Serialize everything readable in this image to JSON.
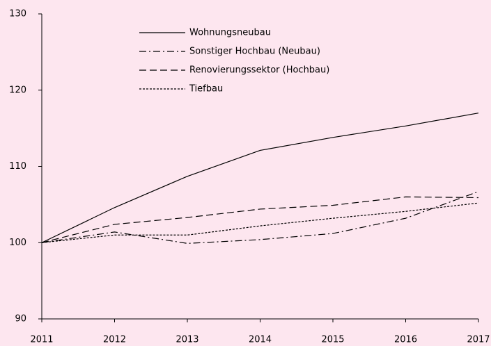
{
  "chart_data": {
    "type": "line",
    "categories": [
      "2011",
      "2012",
      "2013",
      "2014",
      "2015",
      "2016",
      "2017"
    ],
    "series": [
      {
        "name": "Wohnungsneubau",
        "color": "#000000",
        "dash": "solid",
        "values": [
          100,
          104.6,
          108.7,
          112.1,
          113.8,
          115.3,
          117.0
        ]
      },
      {
        "name": "Sonstiger Hochbau (Neubau)",
        "color": "#000000",
        "dash": "dashdot",
        "values": [
          100,
          101.4,
          99.9,
          100.4,
          101.2,
          103.2,
          106.7
        ]
      },
      {
        "name": "Renovierungssektor (Hochbau)",
        "color": "#000000",
        "dash": "dashed",
        "values": [
          100,
          102.4,
          103.3,
          104.4,
          104.9,
          106.0,
          105.9
        ]
      },
      {
        "name": "Tiefbau",
        "color": "#000000",
        "dash": "dotted",
        "values": [
          100,
          101.0,
          101.0,
          102.2,
          103.2,
          104.1,
          105.2
        ]
      }
    ],
    "ylim": [
      90,
      130
    ],
    "yticks": [
      90,
      100,
      110,
      120,
      130
    ],
    "grid": false,
    "legend": "top"
  }
}
